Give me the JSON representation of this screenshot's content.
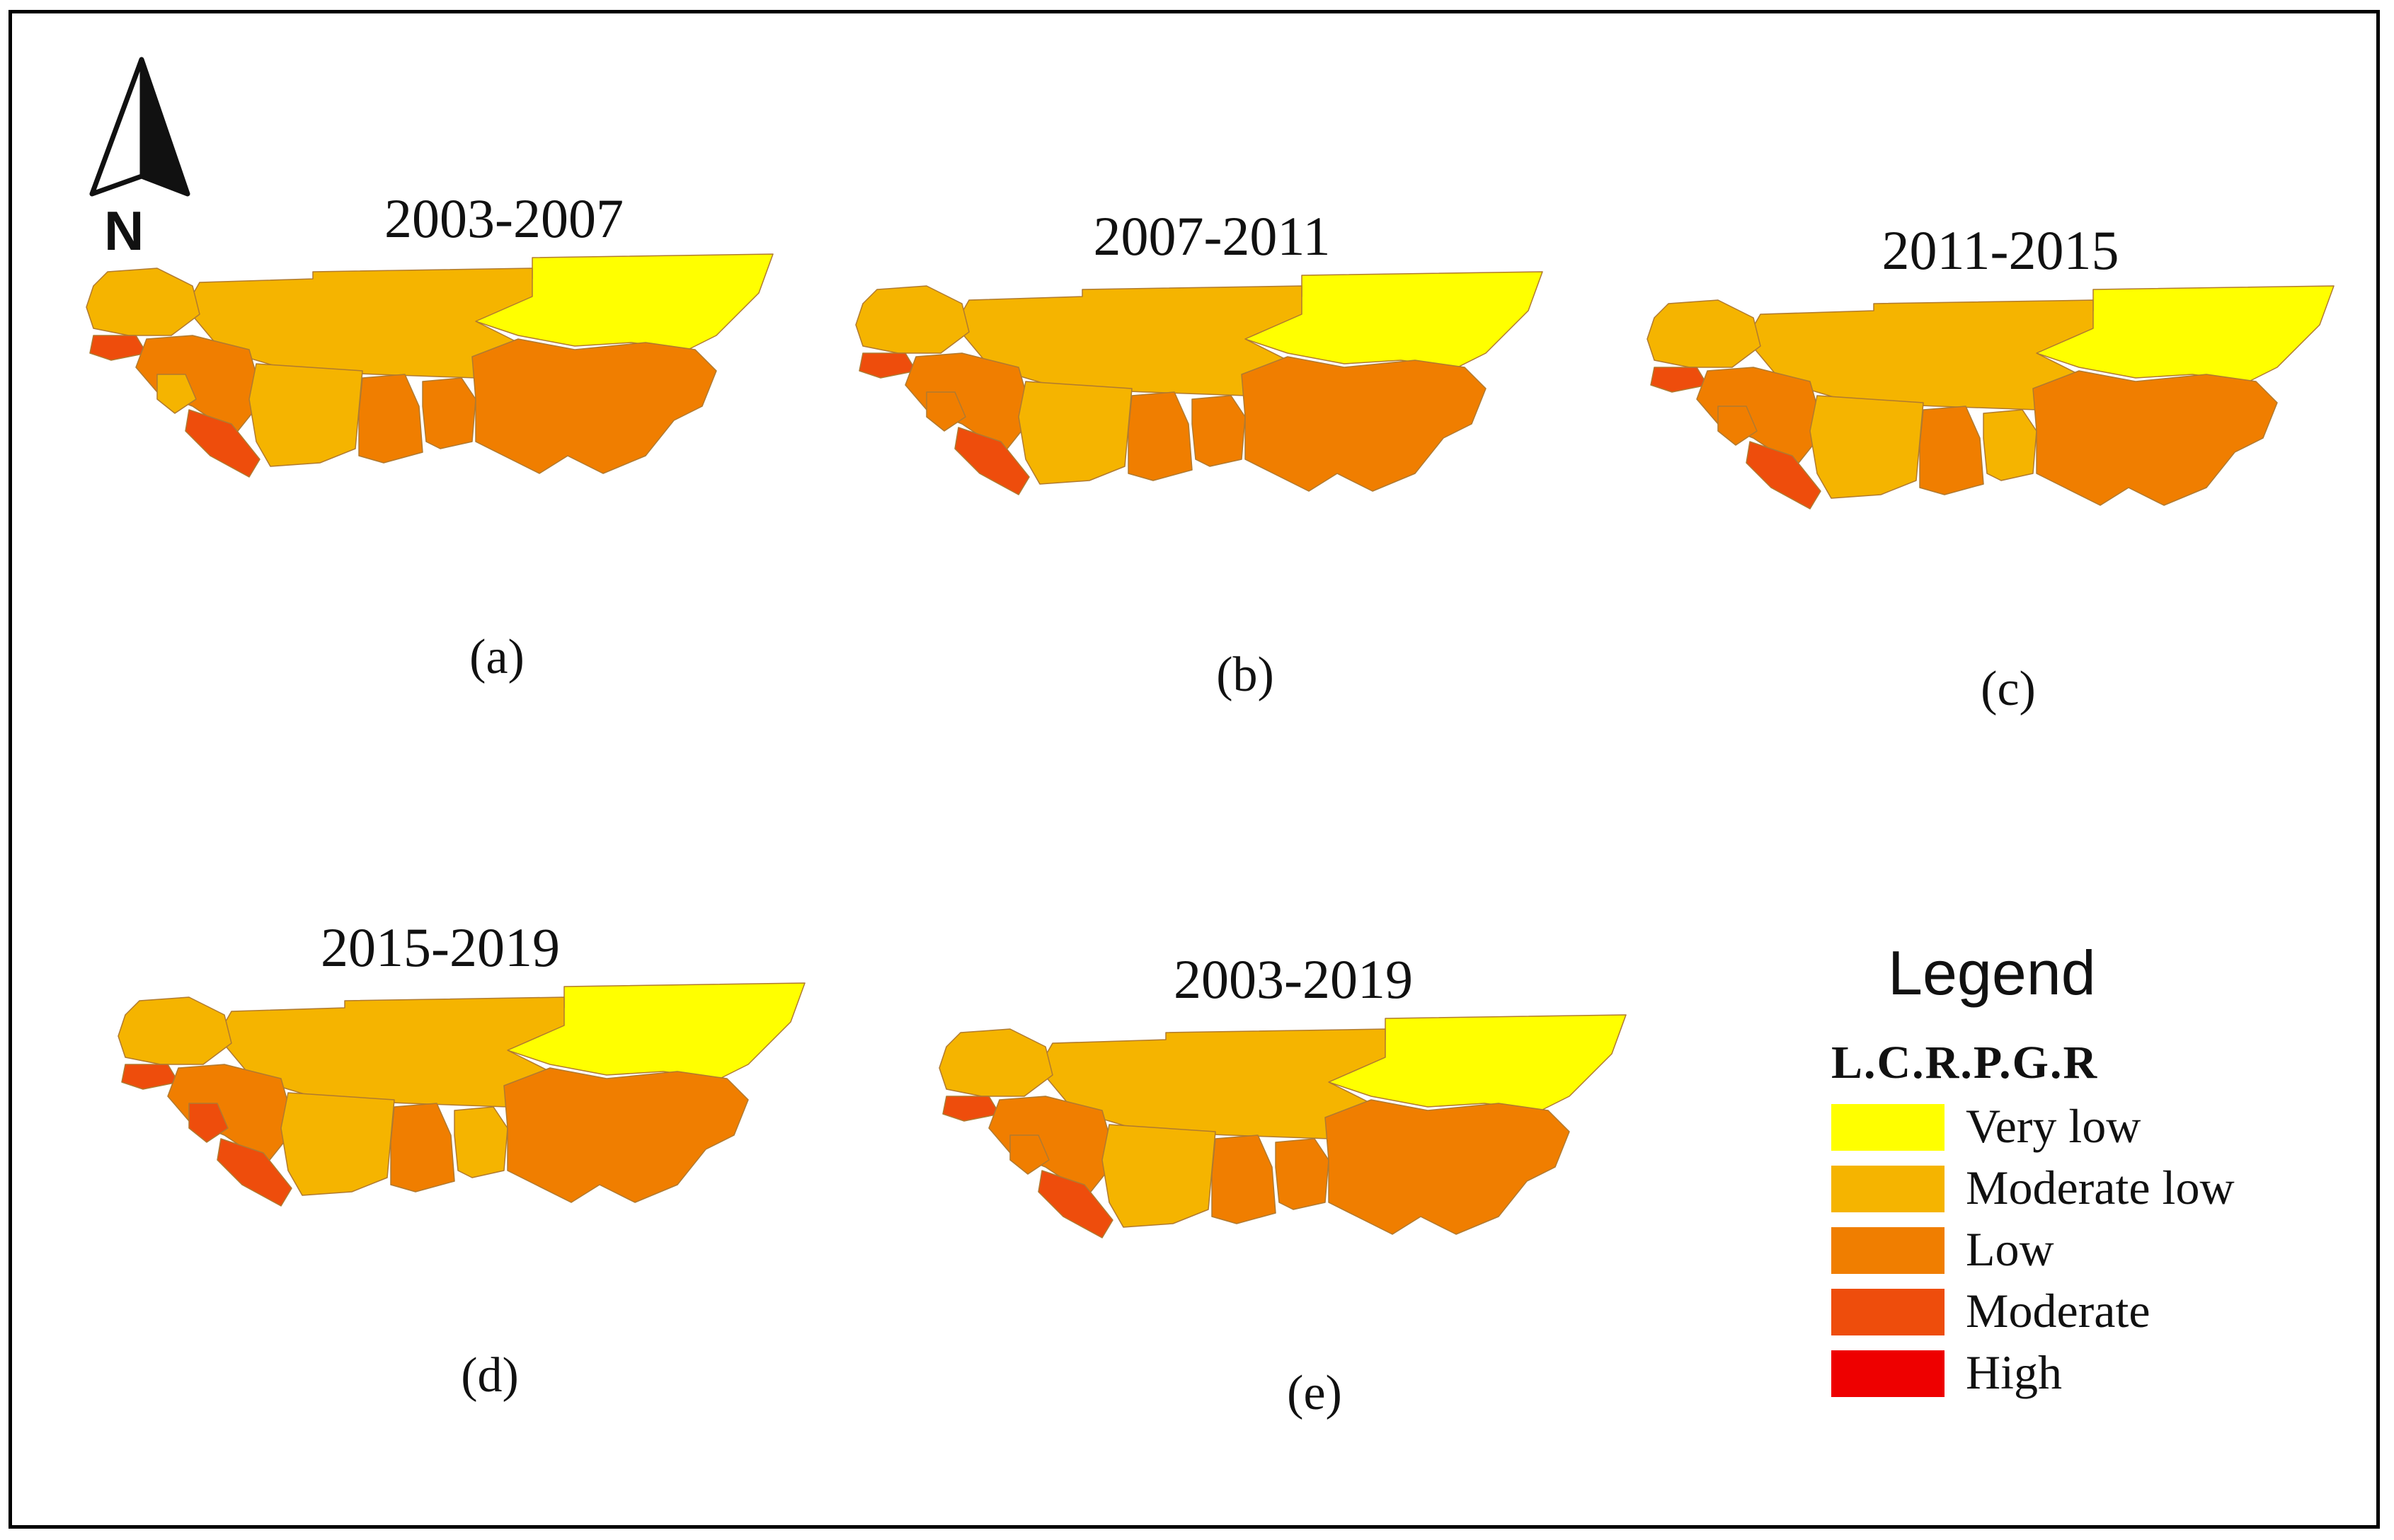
{
  "north_arrow": {
    "label": "N"
  },
  "class_colors": {
    "very_low": "#ffff00",
    "moderate_low": "#f5b400",
    "low": "#f07e00",
    "moderate": "#ee4d0c",
    "high": "#ee0000"
  },
  "panels": [
    {
      "period": "2003-2007",
      "caption": "(a)",
      "classes": {
        "north_east": "very_low",
        "sahel_mid": "moderate_low",
        "west_coast": "moderate_low",
        "guinea": "low",
        "gbissau": "moderate",
        "guinea_small": "moderate_low",
        "liberia": "moderate",
        "civ": "moderate_low",
        "ghana": "low",
        "togo_benin": "low",
        "nigeria": "low"
      }
    },
    {
      "period": "2007-2011",
      "caption": "(b)",
      "classes": {
        "north_east": "very_low",
        "sahel_mid": "moderate_low",
        "west_coast": "moderate_low",
        "guinea": "low",
        "gbissau": "moderate",
        "guinea_small": "low",
        "liberia": "moderate",
        "civ": "moderate_low",
        "ghana": "low",
        "togo_benin": "low",
        "nigeria": "low"
      }
    },
    {
      "period": "2011-2015",
      "caption": "(c)",
      "classes": {
        "north_east": "very_low",
        "sahel_mid": "moderate_low",
        "west_coast": "moderate_low",
        "guinea": "low",
        "gbissau": "moderate",
        "guinea_small": "low",
        "liberia": "moderate",
        "civ": "moderate_low",
        "ghana": "low",
        "togo_benin": "moderate_low",
        "nigeria": "low"
      }
    },
    {
      "period": "2015-2019",
      "caption": "(d)",
      "classes": {
        "north_east": "very_low",
        "sahel_mid": "moderate_low",
        "west_coast": "moderate_low",
        "guinea": "low",
        "gbissau": "moderate",
        "guinea_small": "moderate",
        "liberia": "moderate",
        "civ": "moderate_low",
        "ghana": "low",
        "togo_benin": "moderate_low",
        "nigeria": "low"
      }
    },
    {
      "period": "2003-2019",
      "caption": "(e)",
      "classes": {
        "north_east": "very_low",
        "sahel_mid": "moderate_low",
        "west_coast": "moderate_low",
        "guinea": "low",
        "gbissau": "moderate",
        "guinea_small": "low",
        "liberia": "moderate",
        "civ": "moderate_low",
        "ghana": "low",
        "togo_benin": "low",
        "nigeria": "low"
      }
    }
  ],
  "legend": {
    "title": "Legend",
    "subtitle": "L.C.R.P.G.R",
    "items": [
      {
        "key": "very_low",
        "label": "Very low"
      },
      {
        "key": "moderate_low",
        "label": "Moderate low"
      },
      {
        "key": "low",
        "label": "Low"
      },
      {
        "key": "moderate",
        "label": "Moderate"
      },
      {
        "key": "high",
        "label": "High"
      }
    ]
  }
}
